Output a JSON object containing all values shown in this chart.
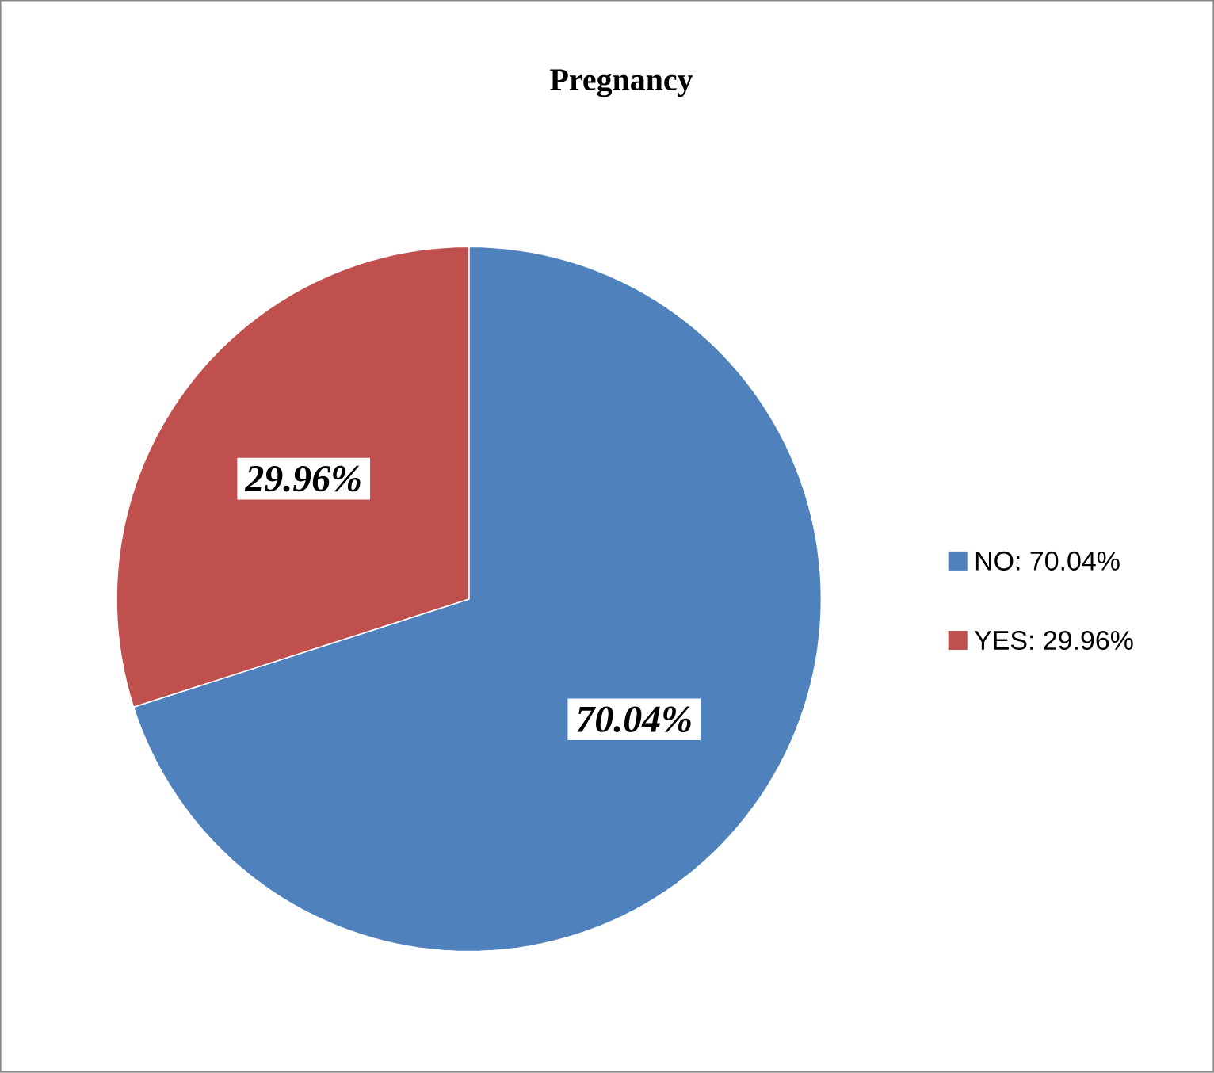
{
  "chart_data": {
    "type": "pie",
    "title": "Pregnancy",
    "categories": [
      "NO: 70.04%",
      "YES: 29.96%"
    ],
    "values": [
      70.04,
      29.96
    ],
    "value_labels": [
      "70.04%",
      "29.96%"
    ],
    "colors": [
      "#4f81bd",
      "#c0504d"
    ],
    "legend": "right"
  }
}
